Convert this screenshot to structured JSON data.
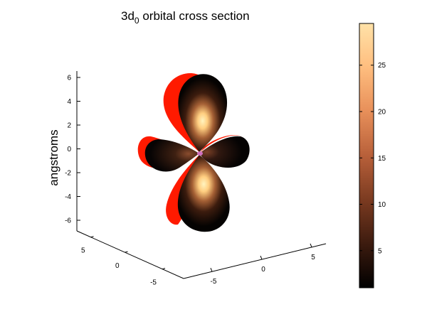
{
  "chart_data": {
    "type": "surface",
    "title_main": "3d",
    "title_sub": "0",
    "title_rest": " orbital cross section",
    "zlabel": "angstroms",
    "z_ticks": [
      6,
      4,
      2,
      0,
      -2,
      -4,
      -6
    ],
    "x_ticks": [
      5,
      0,
      -5
    ],
    "y_ticks": [
      -5,
      0,
      5
    ],
    "zlim": [
      -7,
      7
    ],
    "colorbar": {
      "ticks": [
        5,
        10,
        15,
        20,
        25
      ],
      "range": [
        1,
        29.5
      ],
      "colors": [
        "#000000",
        "#3a1a0e",
        "#7a3a20",
        "#b8603a",
        "#e8905a",
        "#ffbf80",
        "#ffe2a8"
      ]
    },
    "surface_colors": {
      "outer_shell": "#ff1a00",
      "inner_dark": "#000000",
      "inner_bright": "#ffe6a0"
    }
  }
}
